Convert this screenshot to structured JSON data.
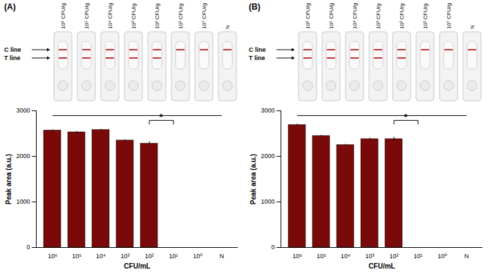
{
  "chart_data": [
    {
      "type": "bar",
      "title": "(A)",
      "strip_labels": [
        "10⁶ CFU/g",
        "10⁵ CFU/g",
        "10⁴ CFU/g",
        "10³ CFU/g",
        "10² CFU/g",
        "10¹ CFU/g",
        "10⁰ CFU/g",
        "N"
      ],
      "line_labels": [
        "C line",
        "T line"
      ],
      "categories": [
        "10⁶",
        "10⁵",
        "10⁴",
        "10³",
        "10²",
        "10¹",
        "10⁰",
        "N"
      ],
      "values": [
        2570,
        2530,
        2580,
        2350,
        2280,
        0,
        0,
        0
      ],
      "errors": [
        15,
        20,
        15,
        20,
        40,
        0,
        0,
        0
      ],
      "color": "#7a0a0a",
      "xlabel": "CFU/mL",
      "ylabel": "Peak area (a.u.)",
      "ylim": [
        0,
        3000
      ],
      "yticks": [
        0,
        1000,
        2000,
        3000
      ],
      "annotations": [
        "*"
      ]
    },
    {
      "type": "bar",
      "title": "(B)",
      "strip_labels": [
        "10⁶ CFU/g",
        "10⁵ CFU/g",
        "10⁴ CFU/g",
        "10³ CFU/g",
        "10² CFU/g",
        "10¹ CFU/g",
        "10⁰ CFU/g",
        "N"
      ],
      "line_labels": [
        "C line",
        "T line"
      ],
      "categories": [
        "10⁶",
        "10⁵",
        "10⁴",
        "10³",
        "10²",
        "10¹",
        "10⁰",
        "N"
      ],
      "values": [
        2690,
        2450,
        2250,
        2380,
        2380,
        0,
        0,
        0
      ],
      "errors": [
        20,
        15,
        15,
        20,
        40,
        0,
        0,
        0
      ],
      "color": "#7a0a0a",
      "xlabel": "CFU/mL",
      "ylabel": "Peak area (a.u.)",
      "ylim": [
        0,
        3000
      ],
      "yticks": [
        0,
        1000,
        2000,
        3000
      ],
      "annotations": [
        "*"
      ]
    }
  ]
}
